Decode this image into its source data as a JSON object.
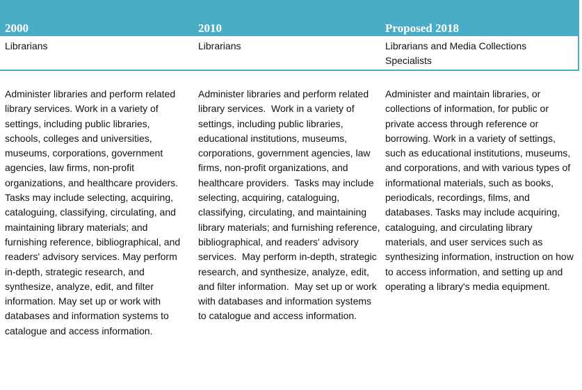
{
  "table": {
    "header": [
      "2000",
      "2010",
      "Proposed 2018"
    ],
    "titles": [
      "Librarians",
      "Librarians",
      "Librarians and Media Collections Specialists"
    ],
    "descriptions": [
      "Administer libraries and perform related library services. Work in a variety of settings, including public libraries, schools, colleges and universities, museums, corporations, government agencies, law firms, non-profit organizations, and healthcare providers. Tasks may include selecting, acquiring, cataloguing, classifying, circulating, and maintaining library materials; and furnishing reference, bibliographical, and readers' advisory services. May perform in-depth, strategic research, and synthesize, analyze, edit, and filter information. May set up or work with databases and information systems to catalogue and access information.",
      "Administer libraries and perform related library services.  Work in a variety of settings, including public libraries, educational institutions, museums, corporations, government agencies, law firms, non-profit organizations, and healthcare providers.  Tasks may include selecting, acquiring, cataloguing, classifying, circulating, and maintaining library materials; and furnishing reference, bibliographical, and readers' advisory services.  May perform in-depth, strategic research, and synthesize, analyze, edit, and filter information.  May set up or work with databases and information systems to catalogue and access information.",
      "Administer and maintain libraries, or collections of information, for public or private access through reference or borrowing. Work in a variety of settings, such as educational institutions, museums, and corporations, and with various types of informational materials, such as books, periodicals, recordings, films, and databases. Tasks may include acquiring, cataloguing, and circulating library materials, and user services such as synthesizing information, instruction on how to access information, and setting up and operating a library's media equipment."
    ]
  }
}
